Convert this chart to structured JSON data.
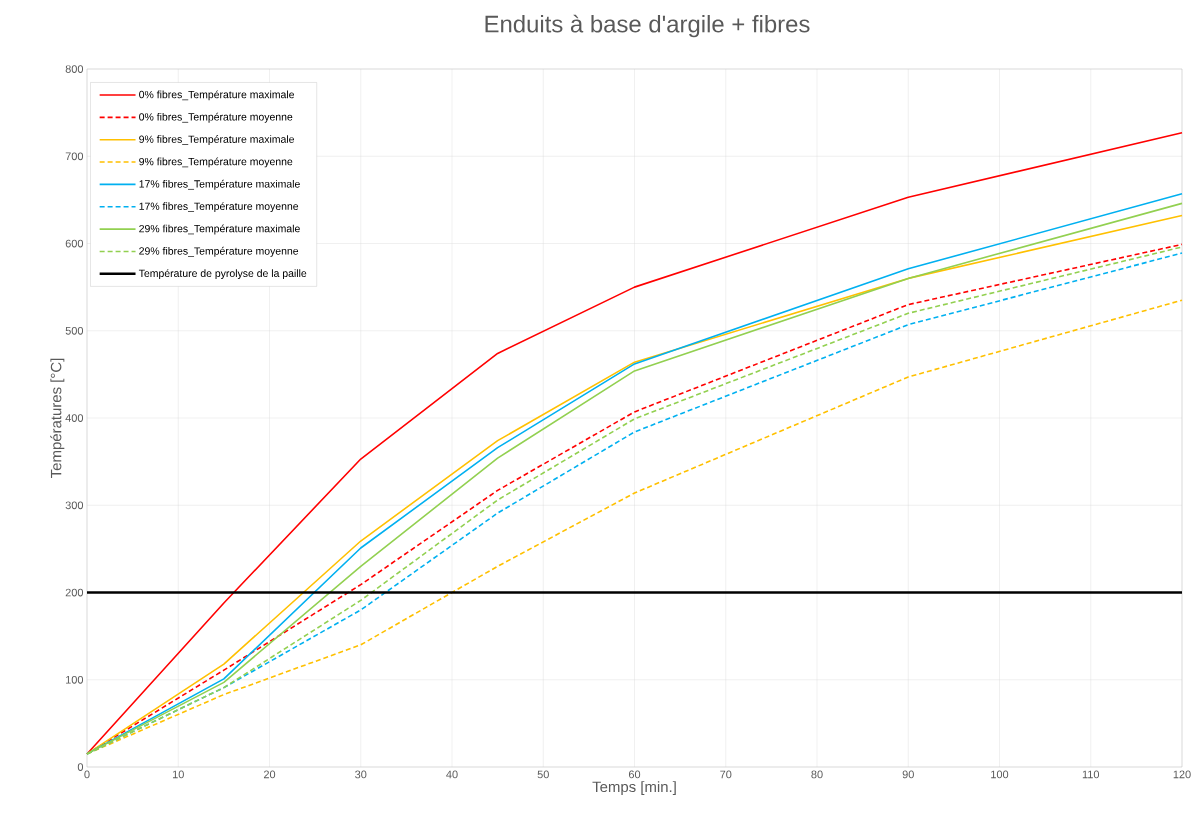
{
  "chart_data": {
    "type": "line",
    "title": "Enduits à base d'argile + fibres",
    "xlabel": "Temps [min.]",
    "ylabel": "Températures [°C]",
    "x": [
      0,
      15,
      30,
      45,
      60,
      90,
      120
    ],
    "series": [
      {
        "name": "0% fibres_Température maximale",
        "color": "#ff0000",
        "line_style": "solid",
        "values": [
          15,
          188,
          353,
          474,
          550,
          653,
          727
        ]
      },
      {
        "name": "0% fibres_Température moyenne",
        "color": "#ff0000",
        "line_style": "dashed",
        "values": [
          15,
          111,
          209,
          317,
          407,
          530,
          599
        ]
      },
      {
        "name": "9% fibres_Température maximale",
        "color": "#ffc000",
        "line_style": "solid",
        "values": [
          15,
          118,
          259,
          374,
          464,
          560,
          632
        ]
      },
      {
        "name": "9% fibres_Température moyenne",
        "color": "#ffc000",
        "line_style": "dashed",
        "values": [
          15,
          83,
          140,
          230,
          314,
          447,
          535
        ]
      },
      {
        "name": "17% fibres_Température maximale",
        "color": "#00b0f0",
        "line_style": "solid",
        "values": [
          15,
          101,
          251,
          366,
          462,
          571,
          657
        ]
      },
      {
        "name": "17% fibres_Température moyenne",
        "color": "#00b0f0",
        "line_style": "dashed",
        "values": [
          15,
          91,
          180,
          291,
          384,
          507,
          589
        ]
      },
      {
        "name": "29% fibres_Température maximale",
        "color": "#92d050",
        "line_style": "solid",
        "values": [
          15,
          97,
          230,
          354,
          454,
          560,
          646
        ]
      },
      {
        "name": "29% fibres_Température moyenne",
        "color": "#92d050",
        "line_style": "dashed",
        "values": [
          15,
          91,
          191,
          306,
          399,
          520,
          596
        ]
      }
    ],
    "ref_lines": [
      {
        "axis": "y",
        "value": 200,
        "label": "Température de pyrolyse de la paille",
        "color": "#000000",
        "line_style": "solid"
      }
    ],
    "xlim": [
      0,
      120
    ],
    "ylim": [
      0,
      800
    ],
    "xticks": [
      0,
      10,
      20,
      30,
      40,
      50,
      60,
      70,
      80,
      90,
      100,
      110,
      120
    ],
    "yticks": [
      0,
      100,
      200,
      300,
      400,
      500,
      600,
      700,
      800
    ],
    "grid": true,
    "legend": "top left",
    "marker": "none"
  }
}
